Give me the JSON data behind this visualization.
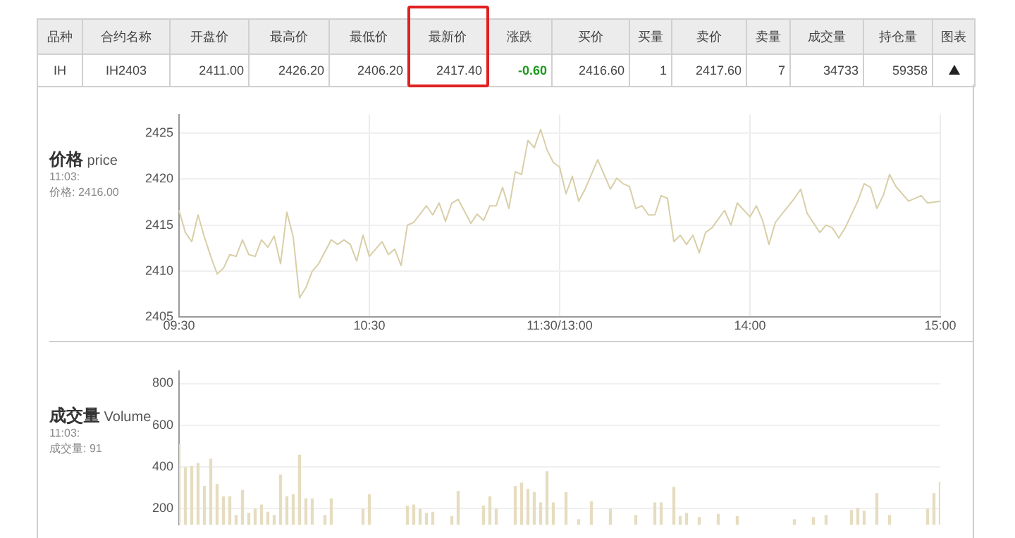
{
  "chart_data": [
    {
      "type": "other",
      "categories": [
        "品种",
        "合约名称",
        "开盘价",
        "最高价",
        "最低价",
        "最新价",
        "涨跌",
        "买价",
        "买量",
        "卖价",
        "卖量",
        "成交量",
        "持仓量",
        "图表"
      ],
      "annotations": [
        "IH",
        "IH2403",
        "2411.00",
        "2426.20",
        "2406.20",
        "2417.40",
        "-0.60",
        "2416.60",
        "1",
        "2417.60",
        "7",
        "34733",
        "59358"
      ]
    },
    {
      "type": "line",
      "title": "价格",
      "subtitle": "price",
      "annotations": [
        "11:03:",
        "价格: 2416.00"
      ],
      "categories": [
        "09:30",
        null,
        null,
        null,
        null,
        null,
        null,
        null,
        null,
        null,
        null,
        null,
        null,
        null,
        null,
        null,
        null,
        null,
        null,
        null,
        null,
        null,
        null,
        null,
        null,
        null,
        null,
        null,
        null,
        null,
        "10:30",
        null,
        null,
        null,
        null,
        null,
        null,
        null,
        null,
        null,
        null,
        null,
        null,
        null,
        null,
        null,
        null,
        null,
        null,
        null,
        null,
        null,
        null,
        null,
        null,
        null,
        null,
        null,
        null,
        null,
        "11:30/13:00",
        null,
        null,
        null,
        null,
        null,
        null,
        null,
        null,
        null,
        null,
        null,
        null,
        null,
        null,
        null,
        null,
        null,
        null,
        null,
        null,
        null,
        null,
        null,
        null,
        null,
        null,
        null,
        null,
        null,
        "14:00",
        null,
        null,
        null,
        null,
        null,
        null,
        null,
        null,
        null,
        null,
        null,
        null,
        null,
        null,
        null,
        null,
        null,
        null,
        null,
        null,
        null,
        null,
        null,
        null,
        null,
        null,
        null,
        null,
        null,
        "15:00"
      ],
      "ylim": [
        2405,
        2427
      ],
      "yticks": [
        2405,
        2410,
        2415,
        2420,
        2425
      ],
      "grid": true,
      "legend": false,
      "marker": "none",
      "series": [
        {
          "color": "#d8cfa8",
          "values": [
            2416.6,
            2414.2,
            2413.2,
            2416.1,
            2413.7,
            2411.6,
            2409.7,
            2410.3,
            2411.8,
            2411.6,
            2413.4,
            2411.8,
            2411.6,
            2413.4,
            2412.6,
            2413.8,
            2410.8,
            2416.4,
            2413.7,
            2407.1,
            2408.2,
            2410,
            2410.8,
            2412.1,
            2413.4,
            2412.9,
            2413.4,
            2412.9,
            2411.1,
            2413.9,
            2411.6,
            null,
            2413.2,
            2411.8,
            2412.4,
            2410.6,
            2415,
            2415.3,
            null,
            2417.1,
            2416.1,
            2417.4,
            2415.4,
            2417.4,
            2417.8,
            null,
            2415.2,
            2416.2,
            2415.5,
            2417.1,
            2417.1,
            2419.1,
            2416.8,
            2420.8,
            2420.5,
            2424.2,
            2423.4,
            2425.4,
            2423.2,
            2421.8,
            2421.3,
            2418.4,
            2420.3,
            2417.6,
            2418.9,
            null,
            2422.1,
            null,
            2418.9,
            2420.1,
            2419.5,
            2419.2,
            2416.8,
            2417.1,
            2416.1,
            2416.1,
            2418.2,
            2417.9,
            2413.2,
            2413.9,
            2412.9,
            2413.9,
            2412,
            2414.2,
            2414.7,
            null,
            2416.6,
            2415,
            2417.4,
            null,
            2415.9,
            2417.1,
            2415.5,
            2412.9,
            2415.3,
            null,
            null,
            2417.9,
            2418.9,
            2416.3,
            null,
            2414.2,
            2415,
            2414.7,
            2413.6,
            2414.7,
            null,
            2417.6,
            2419.5,
            2419.1,
            2416.8,
            2418.2,
            2420.5,
            2419.2,
            2418.4,
            2417.6,
            null,
            2418.2,
            2417.4,
            null,
            2417.6
          ]
        }
      ]
    },
    {
      "type": "bar",
      "title": "成交量",
      "subtitle": "Volume",
      "annotations": [
        "11:03:",
        "成交量: 91"
      ],
      "categories": [
        null,
        null,
        null,
        null,
        null,
        null,
        null,
        null,
        null,
        null,
        null,
        null,
        null,
        null,
        null,
        null,
        null,
        null,
        null,
        null,
        null,
        null,
        null,
        null,
        null,
        null,
        null,
        null,
        null,
        null,
        null,
        null,
        null,
        null,
        null,
        null,
        null,
        null,
        null,
        null,
        null,
        null,
        null,
        null,
        null,
        null,
        null,
        null,
        null,
        null,
        null,
        null,
        null,
        null,
        null,
        null,
        null,
        null,
        null,
        null,
        null,
        null,
        null,
        null,
        null,
        null,
        null,
        null,
        null,
        null,
        null,
        null,
        null,
        null,
        null,
        null,
        null,
        null,
        null,
        null,
        null,
        null,
        null,
        null,
        null,
        null,
        null,
        null,
        null,
        null,
        null,
        null,
        null,
        null,
        null,
        null,
        null,
        null,
        null,
        null,
        null,
        null,
        null,
        null,
        null,
        null,
        null,
        null,
        null,
        null,
        null,
        null,
        null,
        null,
        null,
        null,
        null,
        null,
        null,
        null,
        null
      ],
      "ylim": [
        120,
        860
      ],
      "yticks": [
        200,
        400,
        600,
        800
      ],
      "grid": "y",
      "legend": false,
      "tick_labels": "y",
      "series": [
        {
          "color": "#e6dcc0",
          "values": [
            505,
            395,
            400,
            415,
            305,
            435,
            315,
            255,
            255,
            165,
            285,
            175,
            195,
            215,
            180,
            165,
            360,
            255,
            265,
            455,
            245,
            245,
            null,
            165,
            245,
            null,
            null,
            null,
            null,
            195,
            265,
            null,
            null,
            null,
            null,
            null,
            210,
            215,
            195,
            175,
            180,
            null,
            null,
            160,
            280,
            null,
            null,
            null,
            210,
            255,
            195,
            null,
            null,
            305,
            320,
            290,
            275,
            225,
            375,
            225,
            null,
            275,
            null,
            145,
            null,
            230,
            null,
            null,
            195,
            null,
            null,
            null,
            165,
            null,
            null,
            225,
            225,
            null,
            300,
            160,
            175,
            null,
            155,
            null,
            null,
            170,
            null,
            null,
            160,
            null,
            null,
            null,
            null,
            null,
            null,
            null,
            null,
            145,
            null,
            null,
            155,
            null,
            165,
            null,
            null,
            null,
            190,
            200,
            185,
            null,
            270,
            null,
            165,
            null,
            null,
            null,
            null,
            null,
            195,
            270,
            325
          ]
        }
      ]
    }
  ]
}
